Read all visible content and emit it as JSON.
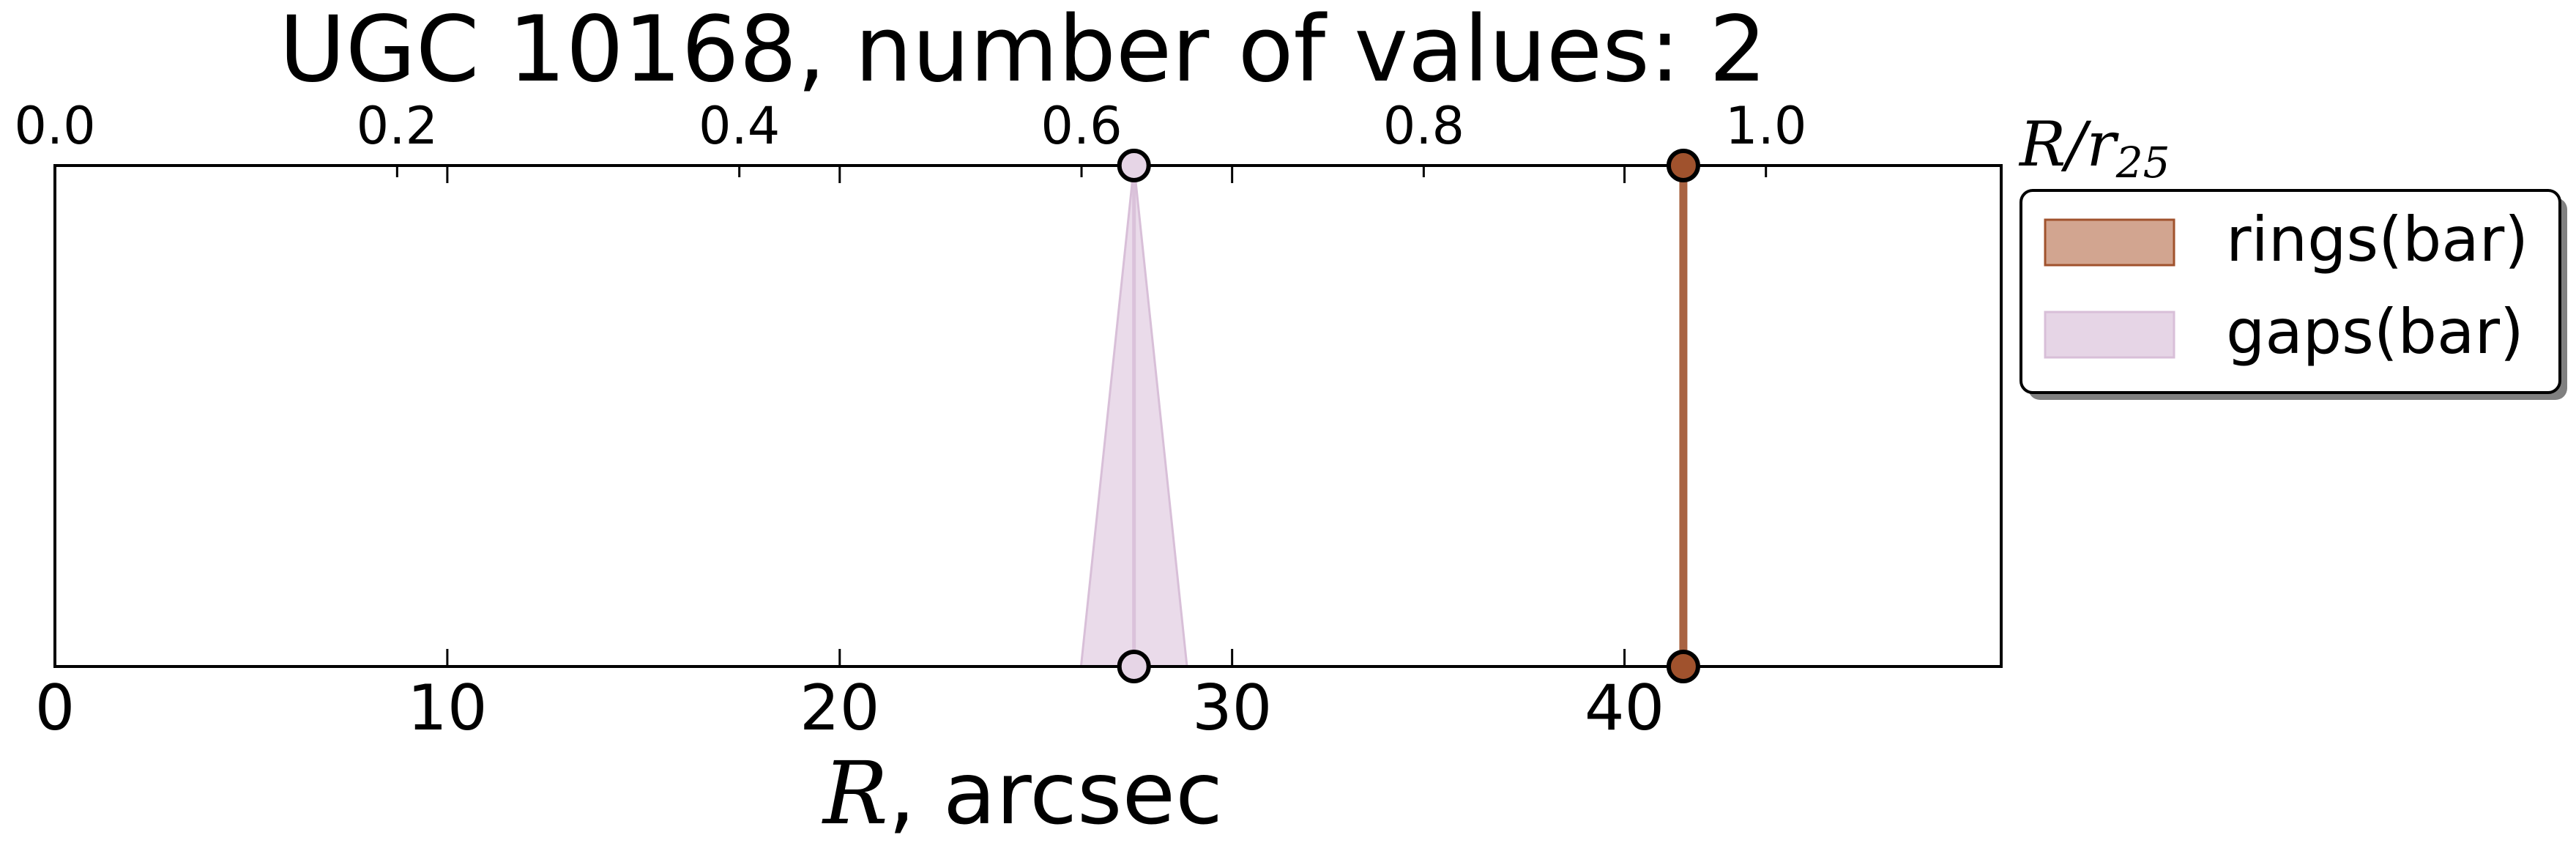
{
  "chart_data": {
    "type": "scatter",
    "title": "UGC 10168, number of values: 2",
    "xlabel_symbol": "R",
    "xlabel_rest": ", arcsec",
    "top_axis_label_symbol": "R/r",
    "top_axis_label_sub": "25",
    "xlim": [
      0,
      49.6
    ],
    "x_ticks": [
      "0",
      "10",
      "20",
      "30",
      "40"
    ],
    "x_tick_values": [
      0,
      10,
      20,
      30,
      40
    ],
    "top_ticks": [
      "0.0",
      "0.2",
      "0.4",
      "0.6",
      "0.8",
      "1.0"
    ],
    "top_tick_values": [
      0.0,
      0.2,
      0.4,
      0.6,
      0.8,
      1.0
    ],
    "top_axis_max": 1.1375,
    "grid": false,
    "legend_position": "outside right, top",
    "series": [
      {
        "name": "rings(bar)",
        "x": [
          41.5
        ],
        "spread": 0.0,
        "color": "#a0522d",
        "fill": "#d2a590"
      },
      {
        "name": "gaps(bar)",
        "x": [
          27.5
        ],
        "spread": 1.35,
        "color": "#d8bfd8",
        "fill": "#e6d5e6"
      }
    ]
  }
}
